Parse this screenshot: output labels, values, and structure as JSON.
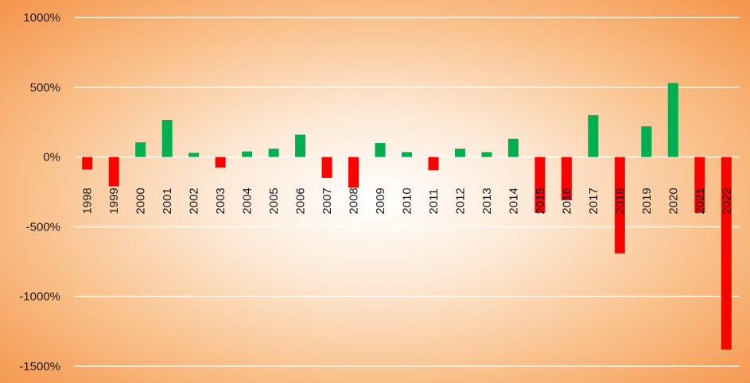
{
  "chart_data": {
    "type": "bar",
    "title": "",
    "xlabel": "",
    "ylabel": "",
    "ylim": [
      -1500,
      1000
    ],
    "y_ticks": [
      1000,
      500,
      0,
      -500,
      -1000,
      -1500
    ],
    "y_tick_labels": [
      "1000%",
      "500%",
      "0%",
      "-500%",
      "-1000%",
      "-1500%"
    ],
    "grid": true,
    "legend": "none",
    "categories": [
      "1998",
      "1999",
      "2000",
      "2001",
      "2002",
      "2003",
      "2004",
      "2005",
      "2006",
      "2007",
      "2008",
      "2009",
      "2010",
      "2011",
      "2012",
      "2013",
      "2014",
      "2015",
      "2016",
      "2017",
      "2018",
      "2019",
      "2020",
      "2021",
      "2022"
    ],
    "values": [
      -90,
      -210,
      105,
      265,
      30,
      -75,
      40,
      60,
      160,
      -150,
      -220,
      100,
      35,
      -95,
      60,
      35,
      130,
      -400,
      -310,
      300,
      -690,
      220,
      530,
      -400,
      -1380
    ],
    "colors": {
      "positive": "#00b050",
      "negative": "#ff0000"
    }
  }
}
